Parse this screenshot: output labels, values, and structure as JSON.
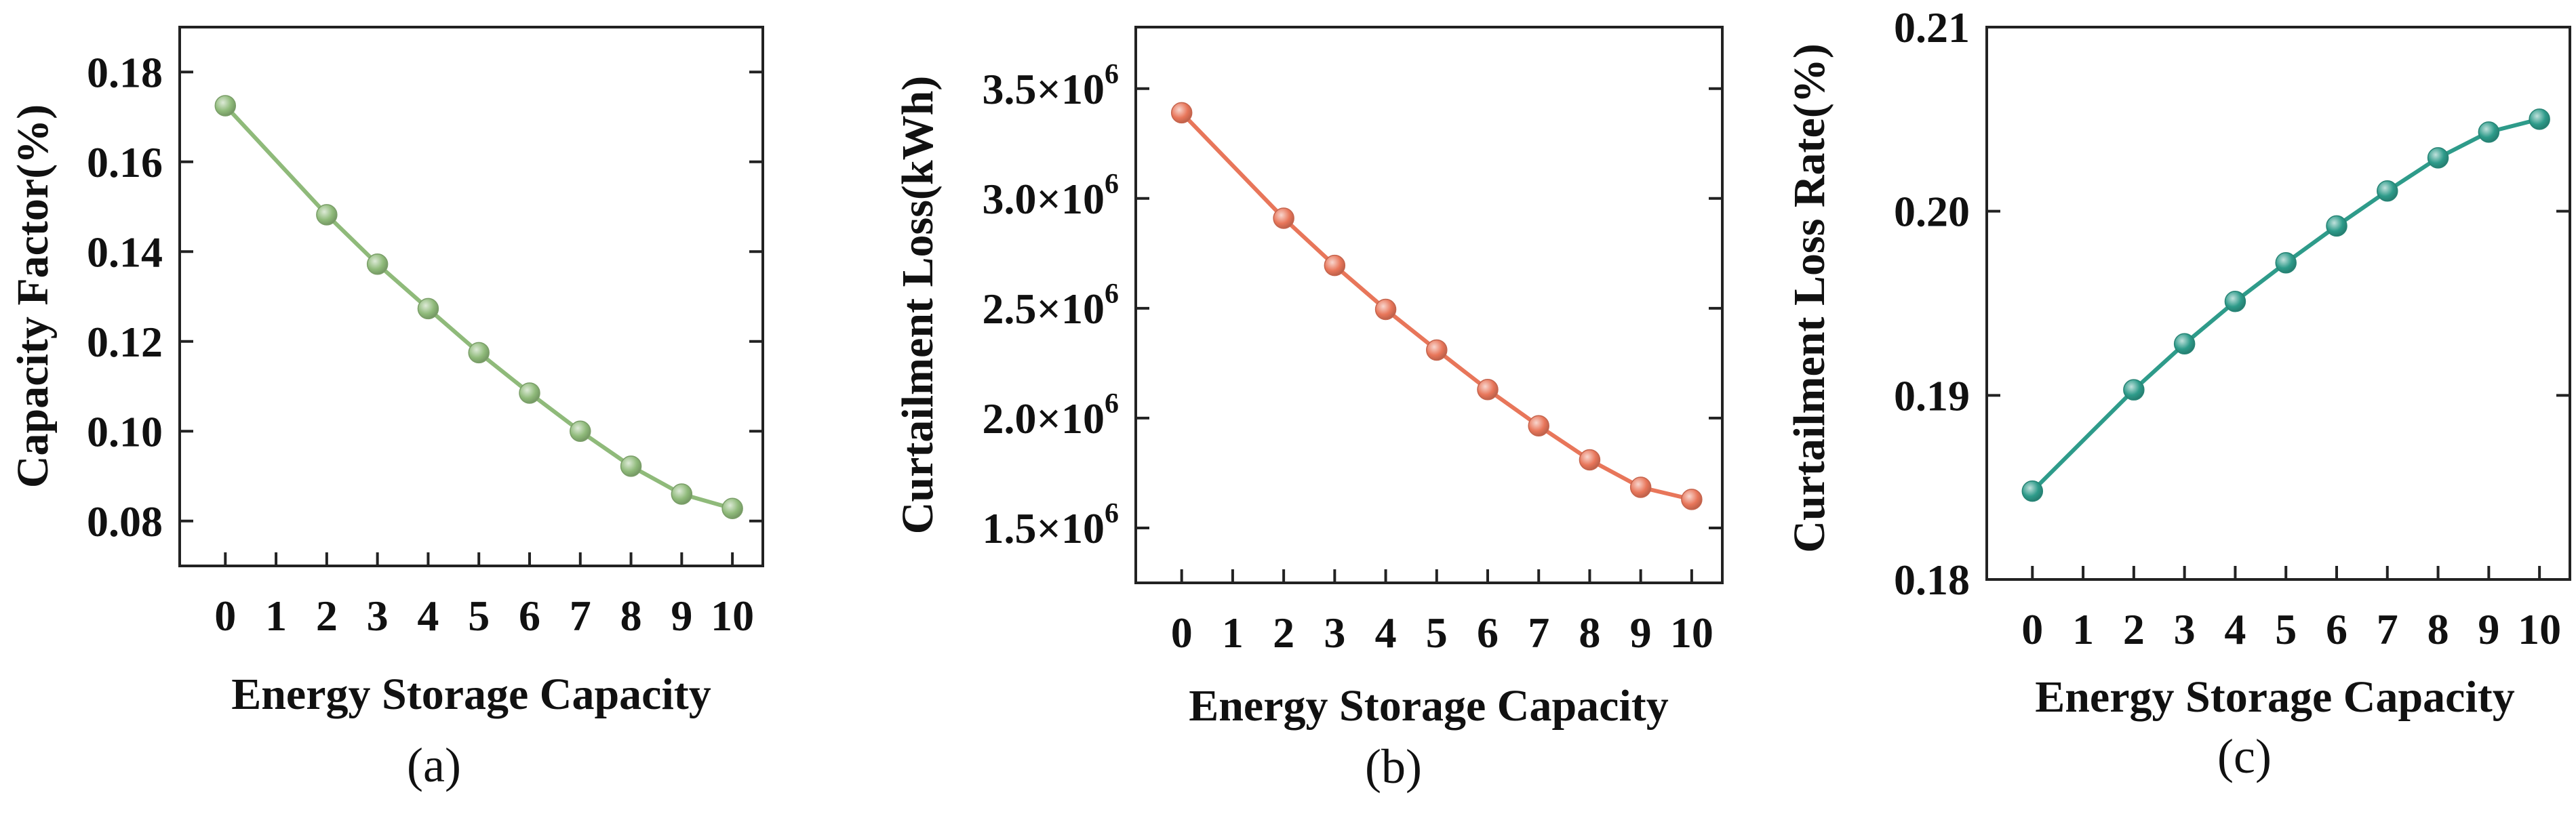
{
  "chart_data": [
    {
      "type": "line",
      "panel": "(a)",
      "title": "",
      "xlabel": "Energy Storage Capacity",
      "ylabel": "Capacity Factor(%)",
      "x": [
        0,
        2,
        3,
        4,
        5,
        6,
        7,
        8,
        9,
        10
      ],
      "xticks": [
        0,
        1,
        2,
        3,
        4,
        5,
        6,
        7,
        8,
        9,
        10
      ],
      "xtick_labels": [
        "0",
        "1",
        "2",
        "3",
        "4",
        "5",
        "6",
        "7",
        "8",
        "9",
        "10"
      ],
      "xlim": [
        -0.9,
        10.6
      ],
      "series": [
        {
          "name": "Capacity Factor",
          "color": "#8fba7a",
          "values": [
            0.1725,
            0.1482,
            0.1372,
            0.1273,
            0.1175,
            0.1085,
            0.1,
            0.0922,
            0.086,
            0.0828
          ]
        }
      ],
      "ylim": [
        0.07,
        0.19
      ],
      "yticks": [
        0.08,
        0.1,
        0.12,
        0.14,
        0.16,
        0.18
      ],
      "ytick_labels": [
        "0.08",
        "0.10",
        "0.12",
        "0.14",
        "0.16",
        "0.18"
      ],
      "grid": false
    },
    {
      "type": "line",
      "panel": "(b)",
      "title": "",
      "xlabel": "Energy Storage Capacity",
      "ylabel": "Curtailment Loss(kWh)",
      "x": [
        0,
        2,
        3,
        4,
        5,
        6,
        7,
        8,
        9,
        10
      ],
      "xticks": [
        0,
        1,
        2,
        3,
        4,
        5,
        6,
        7,
        8,
        9,
        10
      ],
      "xtick_labels": [
        "0",
        "1",
        "2",
        "3",
        "4",
        "5",
        "6",
        "7",
        "8",
        "9",
        "10"
      ],
      "xlim": [
        -0.9,
        10.6
      ],
      "series": [
        {
          "name": "Curtailment Loss",
          "color": "#e8765a",
          "values": [
            3390000,
            2910000,
            2695000,
            2495000,
            2310000,
            2130000,
            1965000,
            1810000,
            1685000,
            1630000
          ]
        }
      ],
      "ylim": [
        1250000,
        3780000
      ],
      "yticks": [
        1500000,
        2000000,
        2500000,
        3000000,
        3500000
      ],
      "ytick_labels": [
        {
          "mantissa": "1.5×10",
          "exponent": "6"
        },
        {
          "mantissa": "2.0×10",
          "exponent": "6"
        },
        {
          "mantissa": "2.5×10",
          "exponent": "6"
        },
        {
          "mantissa": "3.0×10",
          "exponent": "6"
        },
        {
          "mantissa": "3.5×10",
          "exponent": "6"
        }
      ],
      "grid": false
    },
    {
      "type": "line",
      "panel": "(c)",
      "title": "",
      "xlabel": "Energy Storage Capacity",
      "ylabel": "Curtailment Loss Rate(%)",
      "x": [
        0,
        2,
        3,
        4,
        5,
        6,
        7,
        8,
        9,
        10
      ],
      "xticks": [
        0,
        1,
        2,
        3,
        4,
        5,
        6,
        7,
        8,
        9,
        10
      ],
      "xtick_labels": [
        "0",
        "1",
        "2",
        "3",
        "4",
        "5",
        "6",
        "7",
        "8",
        "9",
        "10"
      ],
      "xlim": [
        -0.9,
        10.6
      ],
      "series": [
        {
          "name": "Curtailment Loss Rate",
          "color": "#2e9b8a",
          "values": [
            0.1848,
            0.1903,
            0.1928,
            0.1951,
            0.1972,
            0.1992,
            0.2011,
            0.2029,
            0.2043,
            0.205
          ]
        }
      ],
      "ylim": [
        0.18,
        0.21
      ],
      "yticks": [
        0.18,
        0.19,
        0.2,
        0.21
      ],
      "ytick_labels": [
        "0.18",
        "0.19",
        "0.20",
        "0.21"
      ],
      "grid": false
    }
  ]
}
